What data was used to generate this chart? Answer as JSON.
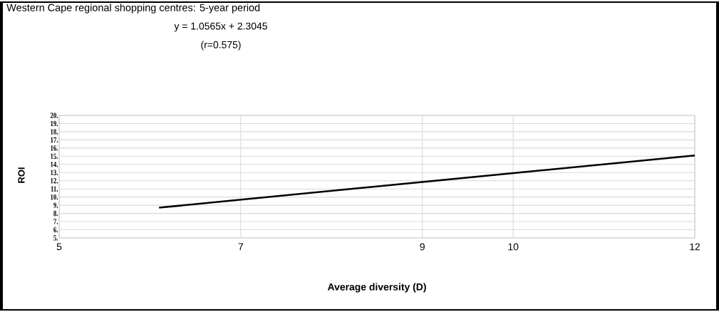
{
  "chart_data": {
    "type": "line",
    "title": "Western Cape regional shopping centres: 5-year period",
    "annotations": [
      "y = 1.0565x + 2.3045",
      "(r=0.575)"
    ],
    "xlabel": "Average diversity (D)",
    "ylabel": "ROI",
    "series": [
      {
        "color": "#000000",
        "x": [
          6.1,
          12
        ],
        "values": [
          8.7,
          15.1
        ]
      }
    ],
    "xlim": [
      5,
      12
    ],
    "xticks": [
      5,
      7,
      9,
      10,
      12
    ],
    "ylim": [
      5,
      20
    ],
    "yticks": [
      {
        "value": 5,
        "label": "5."
      },
      {
        "value": 6,
        "label": "6."
      },
      {
        "value": 7,
        "label": "7."
      },
      {
        "value": 8,
        "label": "8."
      },
      {
        "value": 9,
        "label": "9."
      },
      {
        "value": 10,
        "label": "10."
      },
      {
        "value": 11,
        "label": "11."
      },
      {
        "value": 12,
        "label": "12."
      },
      {
        "value": 13,
        "label": "13."
      },
      {
        "value": 14,
        "label": "14."
      },
      {
        "value": 15,
        "label": "15."
      },
      {
        "value": 16,
        "label": "16."
      },
      {
        "value": 17,
        "label": "17."
      },
      {
        "value": 18,
        "label": "18."
      },
      {
        "value": 19,
        "label": "19."
      },
      {
        "value": 20,
        "label": "20."
      }
    ],
    "grid": true
  }
}
